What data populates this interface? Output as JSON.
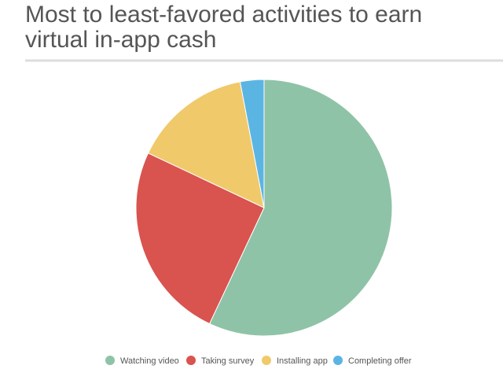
{
  "chart_data": {
    "type": "pie",
    "title": [
      "Most to least-favored activities to earn",
      "virtual in-app cash"
    ],
    "categories": [
      "Watching video",
      "Taking survey",
      "Installing app",
      "Completing offer"
    ],
    "values": [
      57,
      25,
      15,
      3
    ],
    "colors": [
      "#8ec3a7",
      "#d9534f",
      "#f0c96b",
      "#5bb5e3"
    ]
  }
}
